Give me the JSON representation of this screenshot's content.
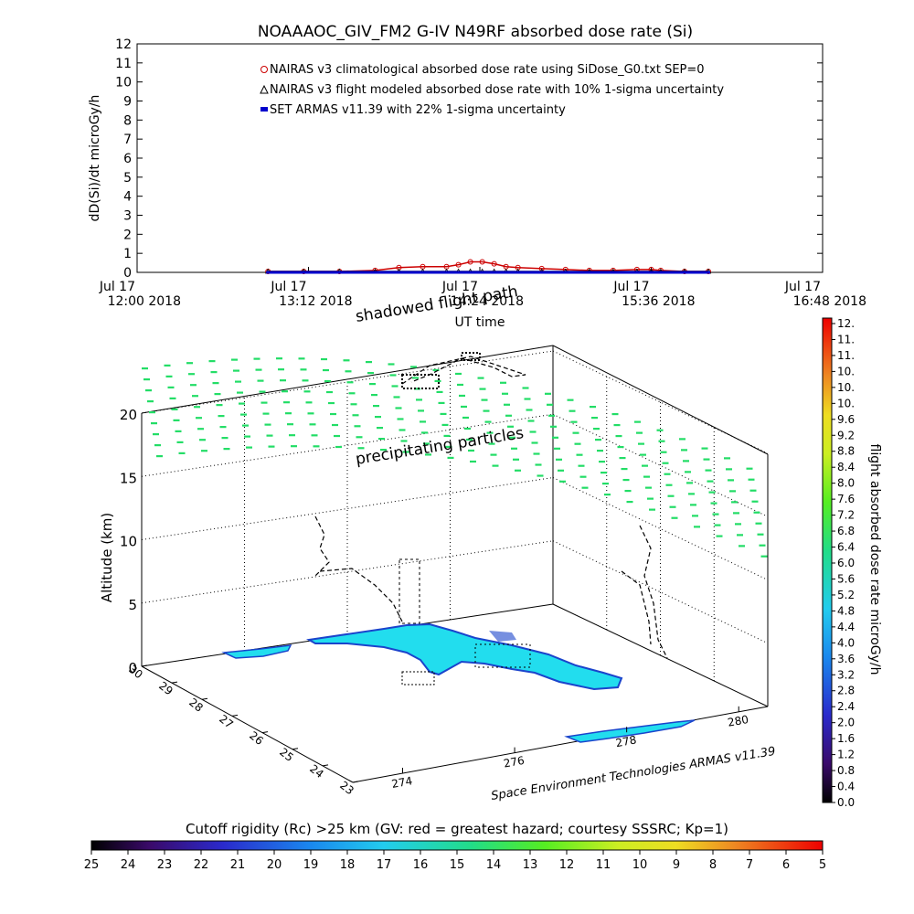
{
  "title": "NOAAAOC_GIV_FM2 G-IV    N49RF  absorbed dose rate (Si)",
  "chart_data": [
    {
      "type": "line",
      "title": "NOAAAOC_GIV_FM2 G-IV    N49RF  absorbed dose rate (Si)",
      "ylabel": "dD(Si)/dt microGy/h",
      "xlabel": "UT time",
      "ylim": [
        0,
        12
      ],
      "yticks": [
        "0",
        "1",
        "2",
        "3",
        "4",
        "5",
        "6",
        "7",
        "8",
        "9",
        "10",
        "11",
        "12"
      ],
      "xticks": [
        {
          "top": "Jul 17",
          "bottom": "12:00 2018"
        },
        {
          "top": "Jul 17",
          "bottom": "13:12 2018"
        },
        {
          "top": "Jul 17",
          "bottom": "14:24 2018"
        },
        {
          "top": "Jul 17",
          "bottom": "15:36 2018"
        },
        {
          "top": "Jul 17",
          "bottom": "16:48 2018"
        }
      ],
      "x": [
        "12:55",
        "13:10",
        "13:25",
        "13:40",
        "13:50",
        "14:00",
        "14:10",
        "14:15",
        "14:20",
        "14:25",
        "14:30",
        "14:35",
        "14:40",
        "14:50",
        "15:00",
        "15:10",
        "15:20",
        "15:30",
        "15:36",
        "15:40",
        "15:50",
        "16:00"
      ],
      "series": [
        {
          "name": "NAIRAS v3 climatological absorbed dose rate using SiDose_G0.txt SEP=0",
          "color": "#cc0000",
          "values": [
            0.05,
            0.05,
            0.05,
            0.1,
            0.25,
            0.3,
            0.3,
            0.4,
            0.55,
            0.55,
            0.45,
            0.3,
            0.25,
            0.2,
            0.15,
            0.1,
            0.1,
            0.15,
            0.15,
            0.1,
            0.05,
            0.05
          ]
        },
        {
          "name": "NAIRAS v3 flight modeled absorbed dose rate with 10% 1-sigma uncertainty",
          "color": "#000000",
          "values": [
            0.05,
            0.05,
            0.05,
            0.05,
            0.05,
            0.05,
            0.05,
            0.05,
            0.05,
            0.05,
            0.05,
            0.05,
            0.05,
            0.05,
            0.05,
            0.05,
            0.05,
            0.05,
            0.05,
            0.05,
            0.05,
            0.05
          ]
        },
        {
          "name": "SET ARMAS v11.39 with 22% 1-sigma uncertainty",
          "color": "#0000cc",
          "values": [
            0,
            0,
            0,
            0,
            0,
            0,
            0,
            0,
            0,
            0,
            0,
            0,
            0,
            0,
            0,
            0,
            0,
            0,
            0,
            0,
            0,
            0
          ]
        }
      ]
    },
    {
      "type": "scatter",
      "zlabel": "Altitude (km)",
      "zticks": [
        "0",
        "5",
        "10",
        "15",
        "20"
      ],
      "lat_ticks": [
        "30",
        "29",
        "28",
        "27",
        "26",
        "25",
        "24",
        "23"
      ],
      "lon_ticks": [
        "274",
        "276",
        "278",
        "280"
      ],
      "annotations": [
        "shadowed flight path",
        "precipitating particles"
      ],
      "credit": "Space Environment Technologies ARMAS v11.39"
    }
  ],
  "dose_colorbar": {
    "label": "flight absorbed dose rate microGy/h",
    "ticks": [
      "12.",
      "11.",
      "11.",
      "10.",
      "10.",
      "10.",
      "9.6",
      "9.2",
      "8.8",
      "8.4",
      "8.0",
      "7.6",
      "7.2",
      "6.8",
      "6.4",
      "6.0",
      "5.6",
      "5.2",
      "4.8",
      "4.4",
      "4.0",
      "3.6",
      "3.2",
      "2.8",
      "2.4",
      "2.0",
      "1.6",
      "1.2",
      "0.8",
      "0.4",
      "0.0"
    ]
  },
  "rigidity_colorbar": {
    "label": "Cutoff rigidity (Rc) >25 km (GV: red = greatest hazard; courtesy SSSRC; Kp=1)",
    "ticks": [
      "25",
      "24",
      "23",
      "22",
      "21",
      "20",
      "19",
      "18",
      "17",
      "16",
      "15",
      "14",
      "13",
      "12",
      "11",
      "10",
      "9",
      "8",
      "7",
      "6",
      "5"
    ]
  },
  "colors": {
    "particles": "#22dd66",
    "land": "#22ddee",
    "land_edge": "#1a44cc",
    "climatological": "#cc0000",
    "armas": "#0000cc"
  }
}
